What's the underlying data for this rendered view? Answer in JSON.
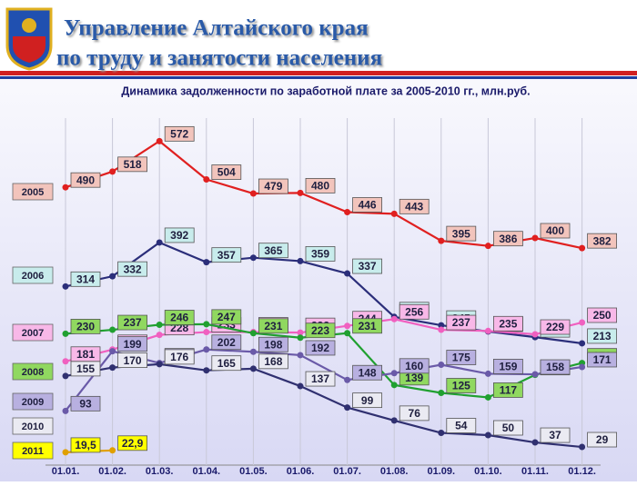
{
  "header": {
    "title_line1": "Управление Алтайского края",
    "title_line2": "по труду и занятости населения"
  },
  "chart_data": {
    "type": "line",
    "title": "Динамика задолженности по заработной плате за 2005-2010 гг., млн.руб.",
    "categories": [
      "01.01.",
      "01.02.",
      "01.03.",
      "01.04.",
      "01.05.",
      "01.06.",
      "01.07.",
      "01.08.",
      "01.09.",
      "01.10.",
      "01.11.",
      "01.12."
    ],
    "ylim": [
      0,
      600
    ],
    "series": [
      {
        "name": "2005",
        "color": "#e02020",
        "box_color": "#f2c4bc",
        "values": [
          490,
          518,
          572,
          504,
          479,
          480,
          446,
          443,
          395,
          386,
          400,
          382
        ]
      },
      {
        "name": "2006",
        "color": "#2b2e7a",
        "box_color": "#c8ecec",
        "values": [
          314,
          332,
          392,
          357,
          365,
          359,
          337,
          260,
          245,
          234,
          224,
          213
        ]
      },
      {
        "name": "2007",
        "color": "#f060c0",
        "box_color": "#f8b8e8",
        "values": [
          181,
          202,
          228,
          233,
          233,
          232,
          244,
          256,
          237,
          235,
          229,
          250
        ]
      },
      {
        "name": "2008",
        "color": "#20a030",
        "box_color": "#90d860",
        "values": [
          230,
          237,
          246,
          247,
          231,
          223,
          231,
          139,
          125,
          117,
          157,
          178
        ]
      },
      {
        "name": "2009",
        "color": "#6a5aa8",
        "box_color": "#b8b0e0",
        "values": [
          93,
          199,
          178,
          202,
          198,
          192,
          148,
          160,
          175,
          159,
          158,
          171
        ]
      },
      {
        "name": "2010",
        "color": "#303070",
        "box_color": "#eaeaf2",
        "values": [
          155,
          170,
          176,
          165,
          168,
          137,
          99,
          76,
          54,
          50,
          37,
          29
        ]
      },
      {
        "name": "2011",
        "color": "#e0a000",
        "box_color": "#ffff00",
        "values": [
          19.5,
          22.9,
          null,
          null,
          null,
          null,
          null,
          null,
          null,
          null,
          null,
          null
        ],
        "value_labels": [
          "19,5",
          "22,9",
          null,
          null,
          null,
          null,
          null,
          null,
          null,
          null,
          null,
          null
        ]
      }
    ]
  }
}
